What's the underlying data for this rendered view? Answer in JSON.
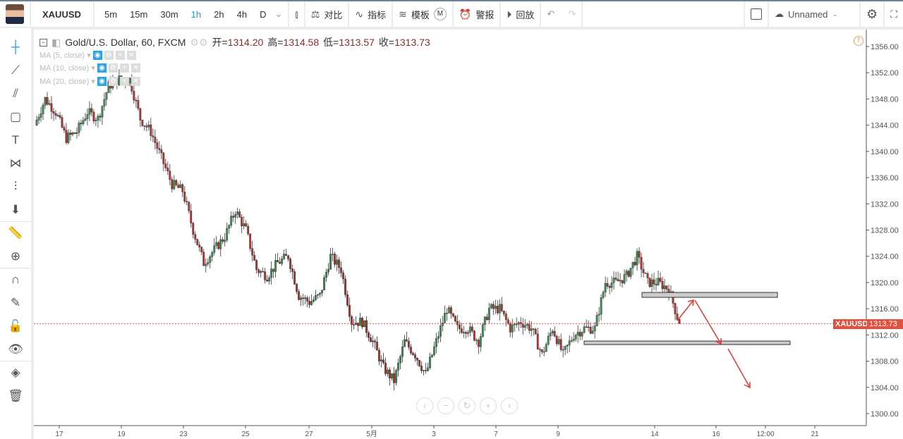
{
  "toolbar": {
    "symbol": "XAUUSD",
    "timeframes": [
      "5m",
      "15m",
      "30m",
      "1h",
      "2h",
      "4h",
      "D"
    ],
    "active_timeframe": "1h",
    "compare": "对比",
    "indicators": "指标",
    "templates": "模板",
    "template_badge": "M",
    "alert": "警报",
    "replay": "回放",
    "layout_name": "Unnamed"
  },
  "legend": {
    "title": "Gold/U.S. Dollar, 60, FXCM",
    "open_label": "开=",
    "open": "1314.20",
    "high_label": "高=",
    "high": "1314.58",
    "low_label": "低=",
    "low": "1313.57",
    "close_label": "收=",
    "close": "1313.73"
  },
  "indicators": [
    "MA (5, close)",
    "MA (10, close)",
    "MA (20, close)"
  ],
  "price_label": {
    "symbol": "XAUUSD",
    "price": "1313.73",
    "color": "#e2503f"
  },
  "colors": {
    "up": "#3d8f5a",
    "down": "#b5332e",
    "accent": "#2196f3"
  },
  "chart_data": {
    "type": "candlestick",
    "ylim": [
      1300,
      1356
    ],
    "y_ticks": [
      "1356.00",
      "1352.00",
      "1348.00",
      "1344.00",
      "1340.00",
      "1336.00",
      "1332.00",
      "1328.00",
      "1324.00",
      "1320.00",
      "1316.00",
      "1312.00",
      "1308.00",
      "1304.00",
      "1300.00"
    ],
    "x_ticks": [
      "17",
      "19",
      "23",
      "25",
      "27",
      "5月",
      "3",
      "7",
      "9",
      "14",
      "16",
      "12:00",
      "21"
    ],
    "closes": [
      1344,
      1348,
      1346,
      1342,
      1343,
      1346,
      1345,
      1350,
      1351,
      1351,
      1345,
      1343,
      1339,
      1335,
      1334,
      1328,
      1323,
      1325,
      1327,
      1331,
      1328,
      1322,
      1321,
      1323,
      1324,
      1318,
      1317,
      1318,
      1324,
      1322,
      1314,
      1314,
      1311,
      1307,
      1305,
      1311,
      1309,
      1306,
      1311,
      1316,
      1313,
      1313,
      1311,
      1316,
      1316,
      1313,
      1314,
      1313,
      1309,
      1313,
      1309,
      1312,
      1313,
      1313,
      1320,
      1320,
      1321,
      1324,
      1320,
      1320,
      1319,
      1313.73
    ],
    "last_price": 1313.73
  }
}
